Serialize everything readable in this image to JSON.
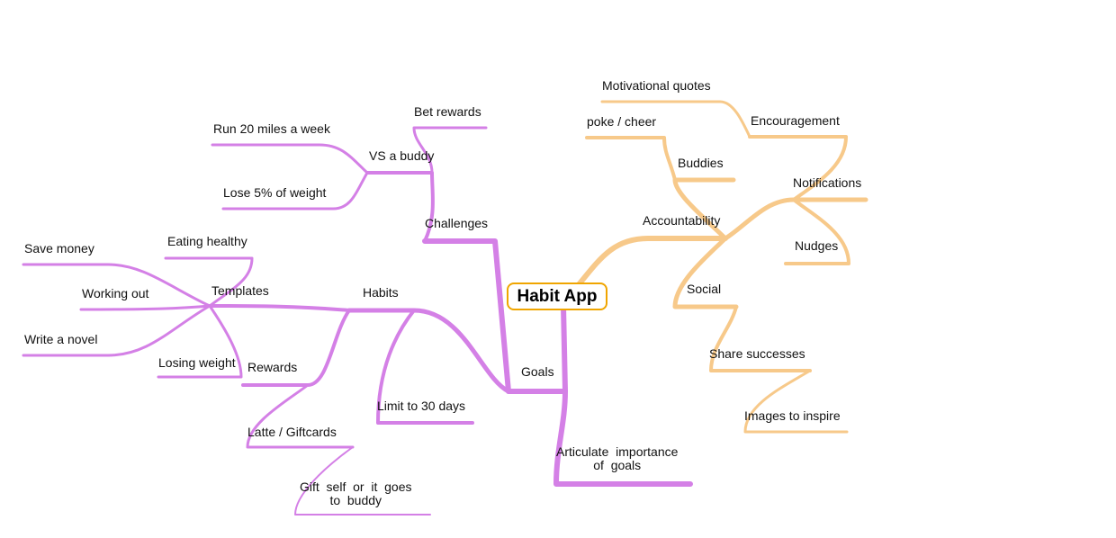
{
  "central": {
    "label": "Habit App"
  },
  "colors": {
    "purple": "#d480e6",
    "orange": "#f7c98a",
    "center_border": "#f0a500"
  },
  "nodes": {
    "goals": "Goals",
    "articulate": "Articulate  importance\nof  goals",
    "habits": "Habits",
    "limit": "Limit to 30 days",
    "rewards": "Rewards",
    "latte": "Latte / Giftcards",
    "gift": "Gift  self  or  it  goes\nto  buddy",
    "templates": "Templates",
    "eating": "Eating healthy",
    "save_money": "Save money",
    "working_out": "Working out",
    "write_novel": "Write a novel",
    "losing_weight": "Losing weight",
    "challenges": "Challenges",
    "vs_buddy": "VS a buddy",
    "bet_rewards": "Bet rewards",
    "run": "Run 20 miles a week",
    "lose": "Lose 5% of weight",
    "accountability": "Accountability",
    "buddies": "Buddies",
    "poke": "poke / cheer",
    "notifications": "Notifications",
    "encouragement": "Encouragement",
    "motivational": "Motivational quotes",
    "nudges": "Nudges",
    "social": "Social",
    "share": "Share successes",
    "images": "Images to inspire"
  }
}
